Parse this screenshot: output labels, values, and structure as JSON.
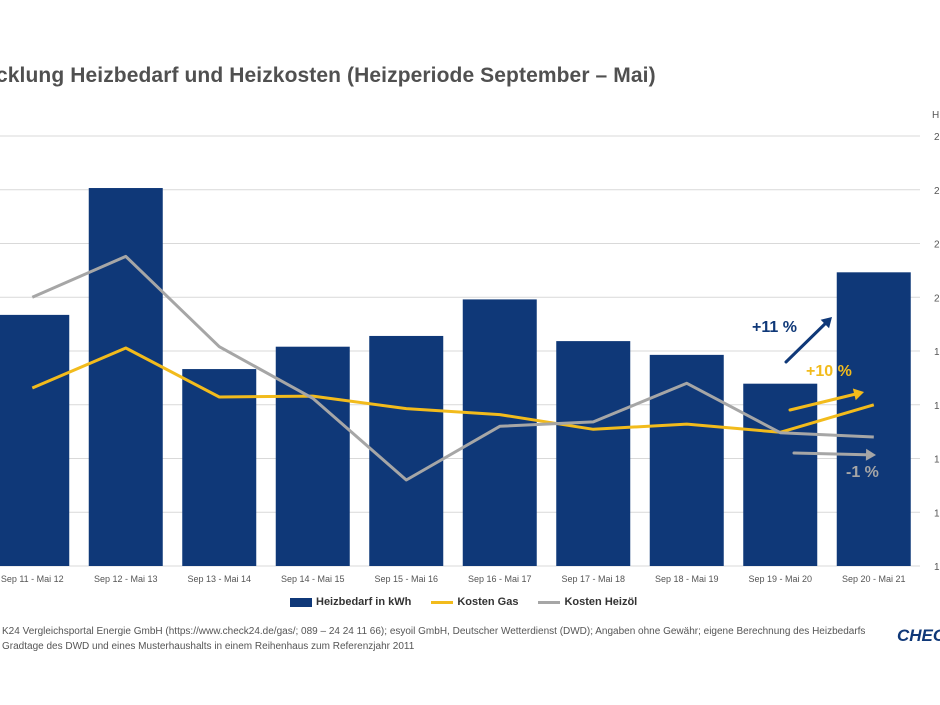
{
  "title": "cklung Heizbedarf und Heizkosten (Heizperiode September – Mai)",
  "right_axis_label": "H",
  "right_axis_ticks": [
    "2",
    "2",
    "2",
    "2",
    "1",
    "1",
    "1",
    "1",
    "1"
  ],
  "colors": {
    "bar": "#0f3878",
    "gas": "#f2bb1c",
    "oil": "#a6a6a6",
    "grid": "#d9d9d9",
    "arrow_bar": "#0f3878"
  },
  "legend": {
    "bar": "Heizbedarf in kWh",
    "gas": "Kosten Gas",
    "oil": "Kosten Heizöl"
  },
  "annotations": {
    "bar": "+11 %",
    "gas": "+10 %",
    "oil": "-1 %"
  },
  "source_lines": [
    "K24 Vergleichsportal Energie GmbH (https://www.check24.de/gas/; 089 – 24 24 11 66); esyoil GmbH, Deutscher Wetterdienst (DWD); Angaben ohne Gewähr; eigene Berechnung des Heizbedarfs",
    "Gradtage des DWD und eines Musterhaushalts in einem Reihenhaus zum Referenzjahr 2011"
  ],
  "logo": "CHEC",
  "chart_data": {
    "type": "bar",
    "title": "cklung Heizbedarf und Heizkosten (Heizperiode September – Mai)",
    "categories": [
      "Sep 11 - Mai 12",
      "Sep 12 - Mai 13",
      "Sep 13 - Mai 14",
      "Sep 14 - Mai 15",
      "Sep 15 - Mai 16",
      "Sep 16 - Mai 17",
      "Sep 17 - Mai 18",
      "Sep 18 - Mai 19",
      "Sep 19 - Mai 20",
      "Sep 20 - Mai 21"
    ],
    "ylim": [
      0,
      100
    ],
    "grid": true,
    "series": [
      {
        "name": "Heizbedarf in kWh",
        "type": "bar",
        "values": [
          58.4,
          87.9,
          45.8,
          51.0,
          53.5,
          62.0,
          52.3,
          49.1,
          42.4,
          68.3
        ]
      },
      {
        "name": "Kosten Gas",
        "type": "line",
        "values": [
          41.4,
          50.7,
          39.3,
          39.5,
          36.6,
          35.2,
          31.8,
          33.0,
          31.1,
          37.5
        ]
      },
      {
        "name": "Kosten Heizöl",
        "type": "line",
        "values": [
          62.5,
          72.0,
          51.0,
          39.0,
          20.0,
          32.5,
          33.5,
          42.5,
          31.0,
          30.0
        ]
      }
    ]
  }
}
